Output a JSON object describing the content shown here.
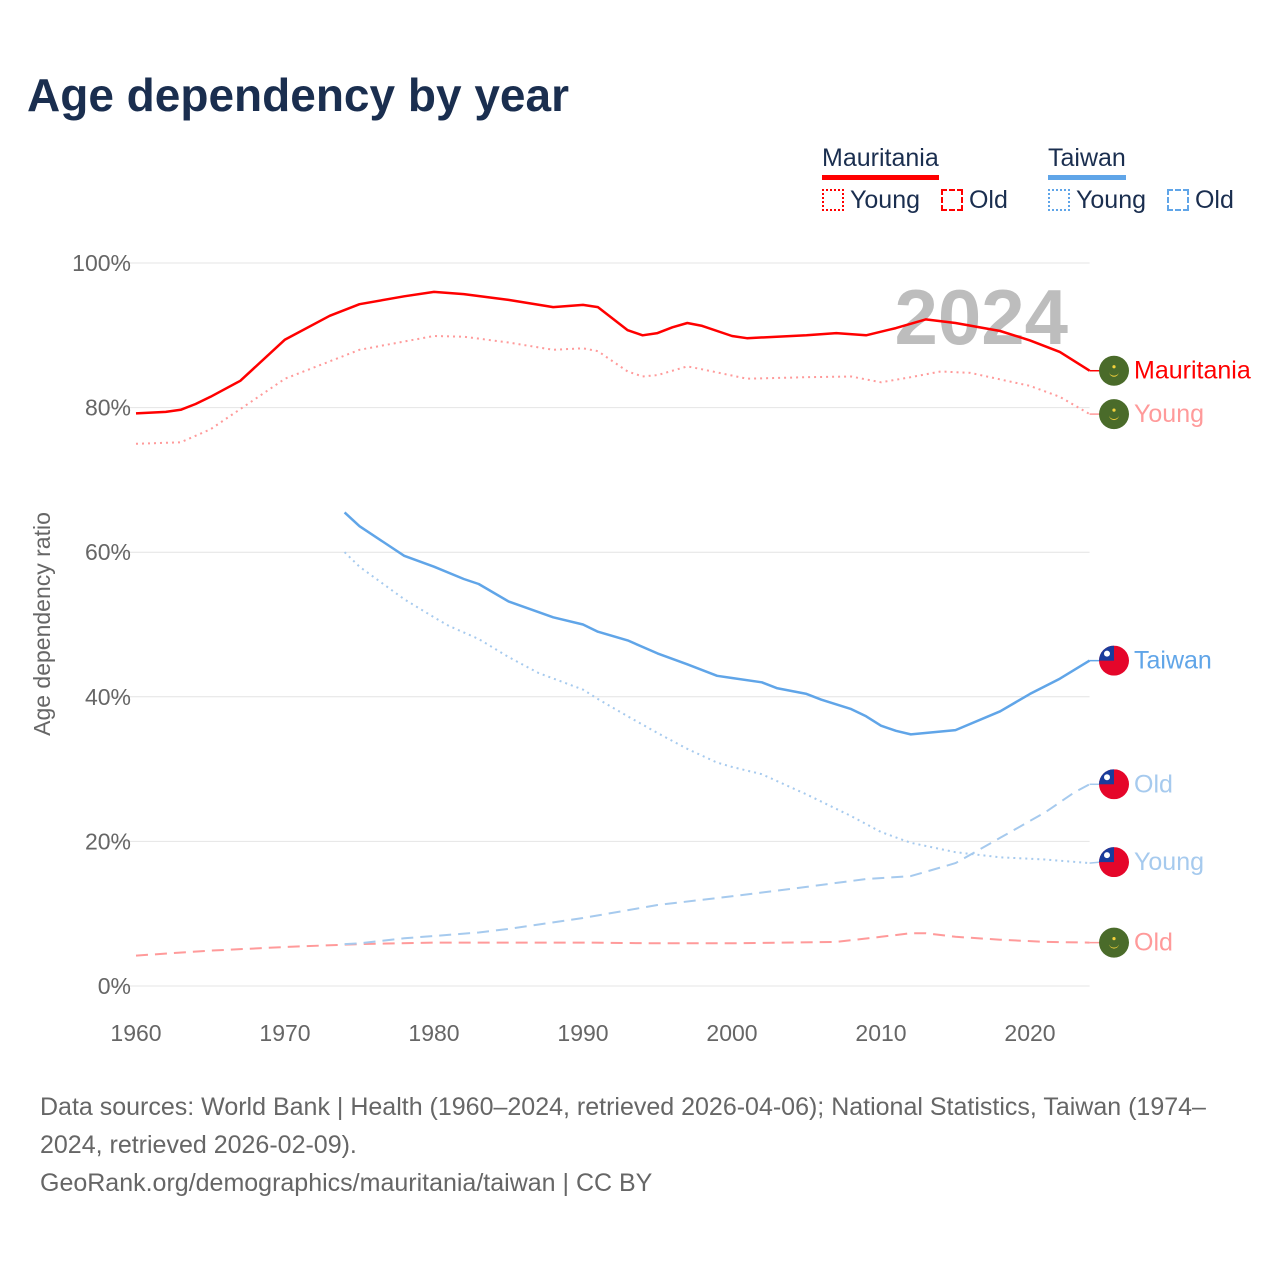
{
  "title": "Age dependency by year",
  "legend": [
    {
      "name": "Mauritania",
      "color": "#ff0000",
      "young_label": "Young",
      "old_label": "Old"
    },
    {
      "name": "Taiwan",
      "color": "#60a5e8",
      "young_label": "Young",
      "old_label": "Old"
    }
  ],
  "year_overlay": "2024",
  "footer": {
    "sources": "Data sources: World Bank | Health (1960–2024, retrieved 2026-04-06); National Statistics, Taiwan (1974–2024, retrieved 2026-02-09).",
    "attribution": "GeoRank.org/demographics/mauritania/taiwan | CC BY"
  },
  "chart_data": {
    "type": "line",
    "title": "Age dependency by year",
    "ylabel": "Age dependency ratio",
    "xlabel": "",
    "xlim": [
      1960,
      2024
    ],
    "ylim": [
      0,
      100
    ],
    "x_ticks": [
      1960,
      1970,
      1980,
      1990,
      2000,
      2010,
      2020
    ],
    "x_tick_labels": [
      "1960",
      "1970",
      "1980",
      "1990",
      "2000",
      "2010",
      "2020"
    ],
    "y_ticks": [
      0,
      20,
      40,
      60,
      80,
      100
    ],
    "y_tick_labels": [
      "0%",
      "20%",
      "40%",
      "60%",
      "80%",
      "100%"
    ],
    "grid": true,
    "legend_position": "top-right",
    "series": [
      {
        "name": "Mauritania",
        "end_label": "Mauritania",
        "style": "solid",
        "color": "#ff0000",
        "flag": "mauritania",
        "x": [
          1960,
          1962,
          1963,
          1964,
          1965,
          1967,
          1970,
          1973,
          1975,
          1978,
          1980,
          1982,
          1985,
          1988,
          1990,
          1991,
          1993,
          1994,
          1995,
          1996,
          1997,
          1998,
          2000,
          2001,
          2005,
          2007,
          2009,
          2011,
          2013,
          2015,
          2018,
          2020,
          2022,
          2024
        ],
        "y": [
          79.2,
          79.4,
          79.7,
          80.5,
          81.5,
          83.7,
          89.4,
          92.7,
          94.3,
          95.4,
          96.0,
          95.7,
          94.9,
          93.9,
          94.2,
          93.9,
          90.7,
          90.0,
          90.3,
          91.1,
          91.7,
          91.3,
          89.9,
          89.6,
          90.0,
          90.3,
          90.0,
          91.0,
          92.2,
          91.7,
          90.6,
          89.3,
          87.7,
          85.1
        ]
      },
      {
        "name": "Mauritania Young",
        "end_label": "Young",
        "style": "dotted",
        "color": "#ff9a9a",
        "flag": "mauritania",
        "x": [
          1960,
          1963,
          1965,
          1970,
          1975,
          1980,
          1982,
          1985,
          1988,
          1990,
          1991,
          1993,
          1994,
          1995,
          1997,
          1998,
          2001,
          2005,
          2008,
          2010,
          2012,
          2014,
          2016,
          2020,
          2022,
          2024
        ],
        "y": [
          75.0,
          75.2,
          77.0,
          84.0,
          88.0,
          89.9,
          89.8,
          89.0,
          88.0,
          88.2,
          87.8,
          85.0,
          84.3,
          84.5,
          85.7,
          85.3,
          84.0,
          84.2,
          84.3,
          83.5,
          84.2,
          85.0,
          84.8,
          83.0,
          81.5,
          79.1
        ]
      },
      {
        "name": "Mauritania Old",
        "end_label": "Old",
        "style": "dashed",
        "color": "#ff9a9a",
        "flag": "mauritania",
        "x": [
          1960,
          1965,
          1970,
          1975,
          1980,
          1990,
          1995,
          2000,
          2007,
          2010,
          2012,
          2013,
          2015,
          2018,
          2021,
          2024
        ],
        "y": [
          4.2,
          4.9,
          5.4,
          5.8,
          6.0,
          6.0,
          5.9,
          5.9,
          6.1,
          6.8,
          7.3,
          7.3,
          6.8,
          6.4,
          6.1,
          6.0
        ]
      },
      {
        "name": "Taiwan",
        "end_label": "Taiwan",
        "style": "solid",
        "color": "#60a5e8",
        "flag": "taiwan",
        "x": [
          1974,
          1975,
          1978,
          1980,
          1982,
          1983,
          1985,
          1988,
          1990,
          1991,
          1993,
          1995,
          1997,
          1999,
          2000,
          2002,
          2003,
          2005,
          2006,
          2008,
          2009,
          2010,
          2011,
          2012,
          2015,
          2018,
          2020,
          2022,
          2024
        ],
        "y": [
          65.5,
          63.6,
          59.5,
          58.0,
          56.3,
          55.6,
          53.2,
          51.0,
          50.0,
          49.0,
          47.8,
          46.0,
          44.5,
          42.9,
          42.6,
          42.0,
          41.2,
          40.4,
          39.6,
          38.3,
          37.3,
          36.0,
          35.3,
          34.8,
          35.4,
          38.0,
          40.4,
          42.5,
          45.0
        ]
      },
      {
        "name": "Taiwan Old",
        "end_label": "Old",
        "style": "dashed",
        "color": "#a6caee",
        "flag": "taiwan",
        "x": [
          1974,
          1975,
          1978,
          1983,
          1985,
          1990,
          1995,
          2000,
          2005,
          2009,
          2012,
          2013,
          2015,
          2018,
          2021,
          2023,
          2024
        ],
        "y": [
          5.8,
          5.9,
          6.6,
          7.4,
          7.9,
          9.4,
          11.2,
          12.4,
          13.7,
          14.8,
          15.2,
          15.8,
          17.0,
          20.5,
          24.0,
          26.8,
          27.9
        ]
      },
      {
        "name": "Taiwan Young",
        "end_label": "Young",
        "style": "dotted",
        "color": "#a6caee",
        "flag": "taiwan",
        "x": [
          1974,
          1975,
          1978,
          1980,
          1981,
          1983,
          1985,
          1987,
          1990,
          1991,
          1993,
          1995,
          1997,
          1999,
          2000,
          2002,
          2005,
          2008,
          2010,
          2012,
          2015,
          2018,
          2021,
          2024
        ],
        "y": [
          60.0,
          58.0,
          53.5,
          51.0,
          49.8,
          48.0,
          45.5,
          43.3,
          41.0,
          39.7,
          37.3,
          35.0,
          32.8,
          30.9,
          30.3,
          29.3,
          26.5,
          23.5,
          21.3,
          19.8,
          18.5,
          17.8,
          17.5,
          17.0
        ]
      }
    ]
  }
}
